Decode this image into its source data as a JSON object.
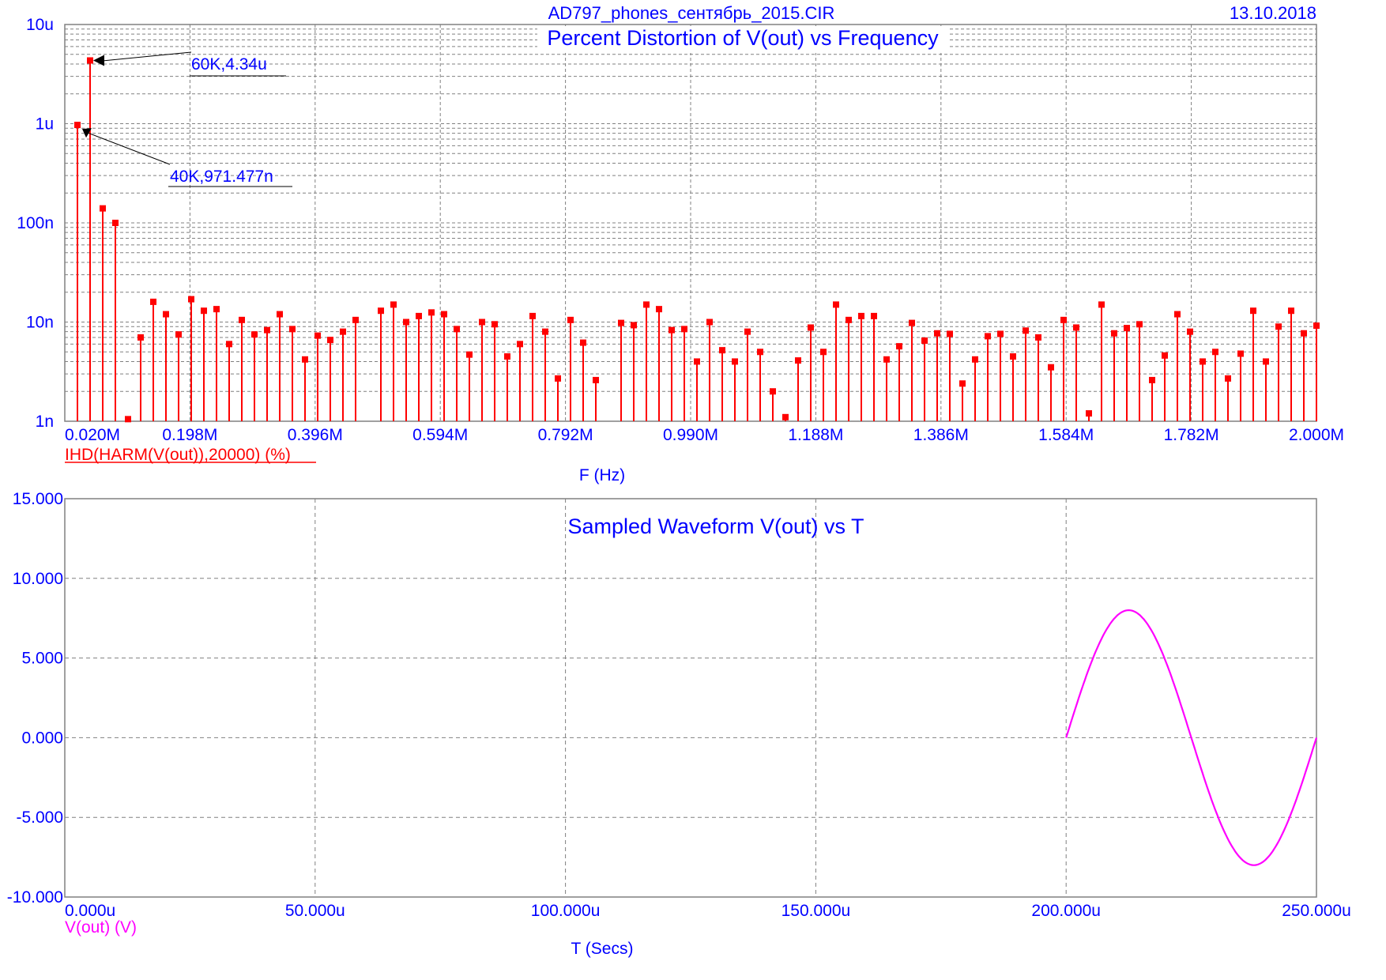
{
  "header": {
    "filename": "AD797_phones_сентябрь_2015.CIR",
    "date": "13.10.2018"
  },
  "colors": {
    "text": "#0000ff",
    "harmonics": "#ff0000",
    "waveform": "#ff00ff",
    "grid": "#808080"
  },
  "chart_data": [
    {
      "type": "bar",
      "title": "Percent Distortion of V(out) vs Frequency",
      "xlabel": "F (Hz)",
      "series_label": "IHD(HARM(V(out)),20000) (%)",
      "x_ticks": [
        "0.020M",
        "0.198M",
        "0.396M",
        "0.594M",
        "0.792M",
        "0.990M",
        "1.188M",
        "1.386M",
        "1.584M",
        "1.782M",
        "2.000M"
      ],
      "y_ticks": [
        "10u",
        "1u",
        "100n",
        "10n",
        "1n"
      ],
      "y_scale": "log",
      "xlim": [
        20000,
        2000000
      ],
      "ylim": [
        1e-09,
        1e-05
      ],
      "grid": true,
      "annotations": [
        {
          "text": "60K,4.34u",
          "x": 60000,
          "y": 4.34e-06
        },
        {
          "text": "40K,971.477n",
          "x": 40000,
          "y": 9.71477e-07
        }
      ],
      "harmonic_spacing_hz": 20000,
      "values": [
        9.71477e-07,
        4.34e-06,
        1.4e-07,
        1e-07,
        1.05e-09,
        7e-09,
        1.6e-08,
        1.2e-08,
        7.5e-09,
        1.7e-08,
        1.3e-08,
        1.35e-08,
        6e-09,
        1.05e-08,
        7.5e-09,
        8.3e-09,
        1.2e-08,
        8.5e-09,
        4.2e-09,
        7.3e-09,
        6.6e-09,
        8e-09,
        1.05e-08,
        null,
        1.3e-08,
        1.5e-08,
        1e-08,
        1.15e-08,
        1.25e-08,
        1.2e-08,
        8.5e-09,
        4.7e-09,
        1e-08,
        9.5e-09,
        4.5e-09,
        6e-09,
        1.15e-08,
        8e-09,
        2.7e-09,
        1.05e-08,
        6.2e-09,
        2.6e-09,
        null,
        9.8e-09,
        9.3e-09,
        1.5e-08,
        1.35e-08,
        8.3e-09,
        8.5e-09,
        4e-09,
        1e-08,
        5.2e-09,
        4e-09,
        8e-09,
        5e-09,
        2e-09,
        1.1e-09,
        4.1e-09,
        8.8e-09,
        5e-09,
        1.5e-08,
        1.05e-08,
        1.15e-08,
        1.15e-08,
        4.2e-09,
        5.7e-09,
        9.8e-09,
        6.5e-09,
        7.7e-09,
        7.6e-09,
        2.4e-09,
        4.2e-09,
        7.2e-09,
        7.6e-09,
        4.5e-09,
        8.2e-09,
        7e-09,
        3.5e-09,
        1.05e-08,
        8.8e-09,
        1.2e-09,
        1.5e-08,
        7.7e-09,
        8.7e-09,
        9.5e-09,
        2.6e-09,
        4.6e-09,
        1.2e-08,
        8e-09,
        4e-09,
        5e-09,
        2.7e-09,
        4.8e-09,
        1.3e-08,
        4e-09,
        9e-09,
        1.3e-08,
        7.7e-09,
        9.2e-09
      ]
    },
    {
      "type": "line",
      "title": "Sampled Waveform  V(out) vs T",
      "xlabel": "T (Secs)",
      "series_label": "V(out) (V)",
      "x_ticks": [
        "0.000u",
        "50.000u",
        "100.000u",
        "150.000u",
        "200.000u",
        "250.000u"
      ],
      "y_ticks": [
        "15.000",
        "10.000",
        "5.000",
        "0.000",
        "-5.000",
        "-10.000"
      ],
      "xlim": [
        0,
        0.00025
      ],
      "ylim": [
        -10,
        15
      ],
      "grid": true,
      "series": [
        {
          "name": "V(out)",
          "x": [
            0.0002,
            0.0002025,
            0.000205,
            0.0002075,
            0.00021,
            0.0002125,
            0.000215,
            0.0002175,
            0.00022,
            0.0002225,
            0.000225,
            0.0002275,
            0.00023,
            0.0002325,
            0.000235,
            0.0002375,
            0.00024,
            0.0002425,
            0.000245,
            0.0002475,
            0.00025
          ],
          "y": [
            0.0,
            2.47,
            4.7,
            6.47,
            7.61,
            8.0,
            7.61,
            6.47,
            4.7,
            2.47,
            0.0,
            -2.47,
            -4.7,
            -6.47,
            -7.61,
            -8.0,
            -7.61,
            -6.47,
            -4.7,
            -2.47,
            0.0
          ]
        }
      ]
    }
  ]
}
